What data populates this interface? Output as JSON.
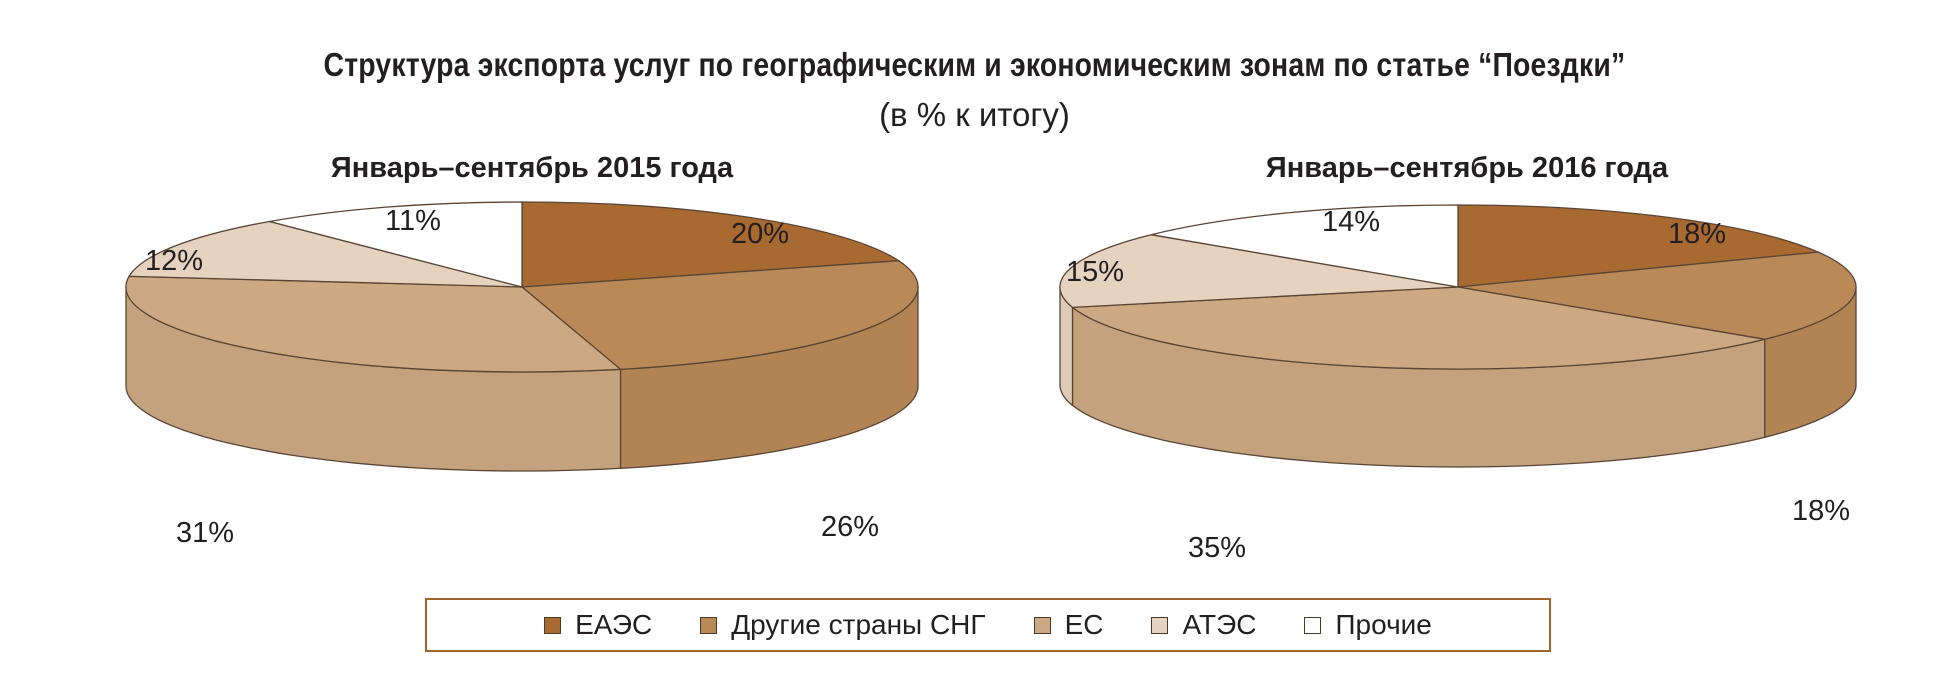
{
  "title": "Структура экспорта услуг по географическим и экономическим зонам по статье “Поездки”",
  "subtitle": "(в % к итогу)",
  "colors": {
    "ЕАЭС": "#a86a30",
    "Другие страны СНГ": "#b98958",
    "ЕС": "#cca982",
    "АТЭС": "#e6d3bf",
    "Прочие": "#ffffff"
  },
  "legend": [
    {
      "label": "ЕАЭС",
      "color": "#a86a30"
    },
    {
      "label": "Другие страны СНГ",
      "color": "#b98958"
    },
    {
      "label": "ЕС",
      "color": "#cca982"
    },
    {
      "label": "АТЭС",
      "color": "#e6d3bf"
    },
    {
      "label": "Прочие",
      "color": "#ffffff"
    }
  ],
  "chart_data": [
    {
      "type": "pie",
      "title": "Январь–сентябрь 2015 года",
      "categories": [
        "ЕАЭС",
        "Другие страны СНГ",
        "ЕС",
        "АТЭС",
        "Прочие"
      ],
      "values": [
        20,
        26,
        31,
        12,
        11
      ],
      "labels": [
        "20%",
        "26%",
        "31%",
        "12%",
        "11%"
      ],
      "style": "3d"
    },
    {
      "type": "pie",
      "title": "Январь–сентябрь 2016 года",
      "categories": [
        "ЕАЭС",
        "Другие страны СНГ",
        "ЕС",
        "АТЭС",
        "Прочие"
      ],
      "values": [
        18,
        18,
        35,
        15,
        14
      ],
      "labels": [
        "18%",
        "18%",
        "35%",
        "15%",
        "14%"
      ],
      "style": "3d"
    }
  ]
}
